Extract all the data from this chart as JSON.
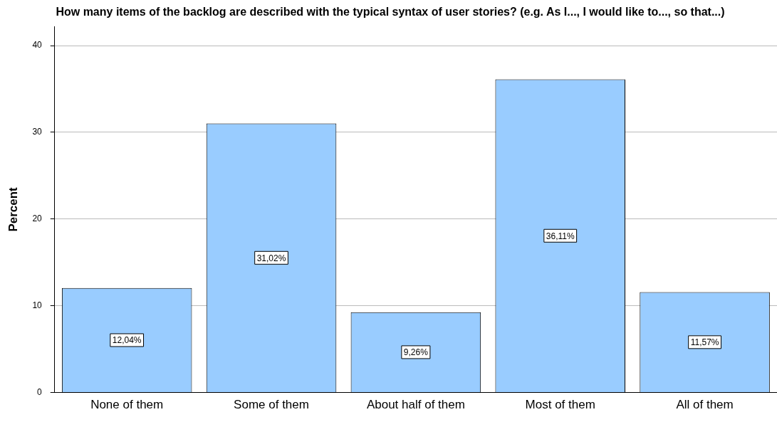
{
  "chart_data": {
    "type": "bar",
    "title": "How many items of the backlog are described with the typical syntax of user stories? (e.g. As I..., I would like to..., so that...)",
    "ylabel": "Percent",
    "categories": [
      "None of them",
      "Some of them",
      "About half of them",
      "Most of them",
      "All of them"
    ],
    "values": [
      12.04,
      31.02,
      9.26,
      36.11,
      11.57
    ],
    "value_labels": [
      "12,04%",
      "31,02%",
      "9,26%",
      "36,11%",
      "11,57%"
    ],
    "color": "#99ccff",
    "ylim": [
      0,
      42.2
    ],
    "yticks": [
      0,
      10,
      20,
      30,
      40
    ],
    "grid": "y",
    "legend": false
  }
}
